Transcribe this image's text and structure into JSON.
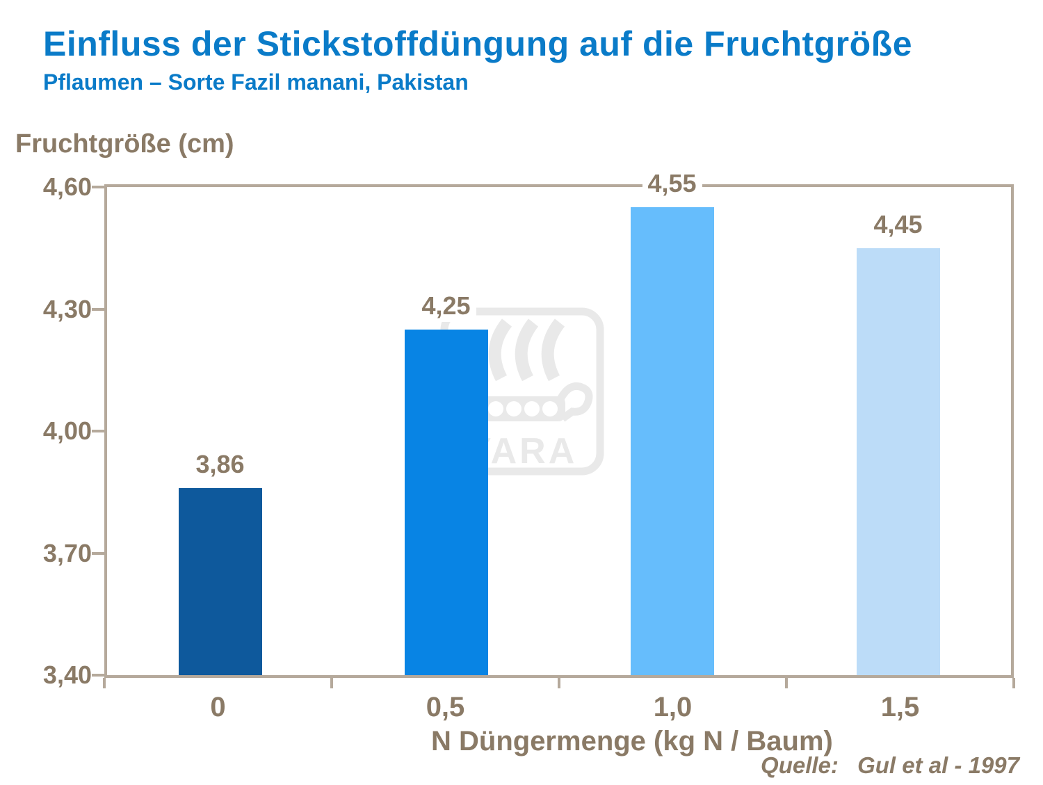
{
  "page": {
    "title": "Einfluss der Stickstoffdüngung auf die Fruchtgröße",
    "subtitle": "Pflaumen – Sorte Fazil manani, Pakistan",
    "source_label": "Quelle:",
    "source_text": "Gul et al - 1997"
  },
  "chart_data": {
    "type": "bar",
    "title": "Einfluss der Stickstoffdüngung auf die Fruchtgröße",
    "subtitle": "Pflaumen – Sorte Fazil manani, Pakistan",
    "ylabel": "Fruchtgröße (cm)",
    "xlabel": "N Düngermenge (kg N / Baum)",
    "categories": [
      "0",
      "0,5",
      "1,0",
      "1,5"
    ],
    "values": [
      3.86,
      4.25,
      4.55,
      4.45
    ],
    "value_labels": [
      "3,86",
      "4,25",
      "4,55",
      "4,45"
    ],
    "ylim": [
      3.4,
      4.6
    ],
    "yticks": [
      4.6,
      4.3,
      4.0,
      3.7,
      3.4
    ],
    "ytick_labels": [
      "4,60",
      "4,30",
      "4,00",
      "3,70",
      "3,40"
    ],
    "bar_colors": [
      "#0e599c",
      "#0884e4",
      "#66bdfc",
      "#bcdcf8"
    ],
    "grid": false,
    "legend": null,
    "source": "Quelle: Gul et al - 1997"
  },
  "watermark": {
    "name": "yara-logo",
    "label": "YARA",
    "color": "#e9e9e9"
  },
  "colors": {
    "heading_blue": "#0a7bc8",
    "axis_brown": "#8a7a66",
    "border_tan": "#b5a99b",
    "watermark_gray": "#e9e9e9",
    "background": "#ffffff"
  }
}
